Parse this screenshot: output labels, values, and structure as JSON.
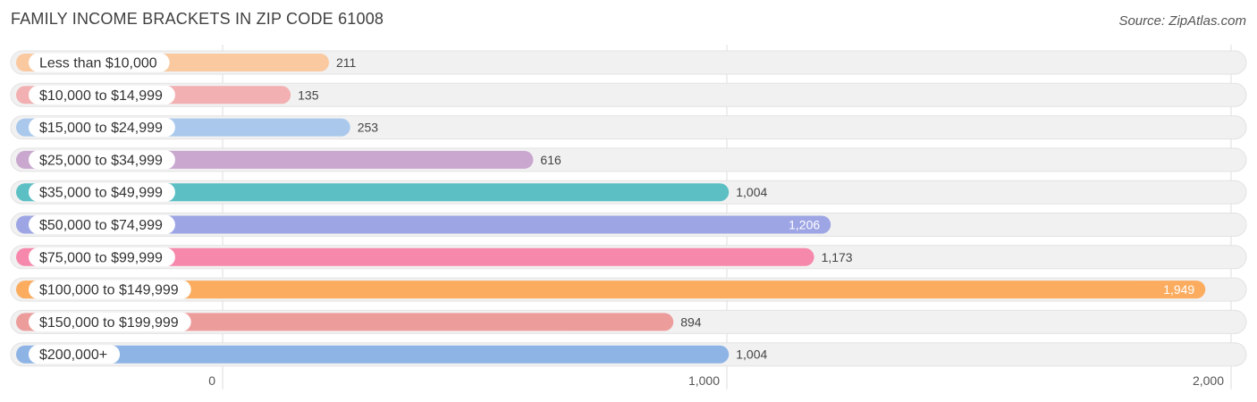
{
  "header": {
    "title": "FAMILY INCOME BRACKETS IN ZIP CODE 61008",
    "source": "Source: ZipAtlas.com"
  },
  "chart_data": {
    "type": "bar",
    "orientation": "horizontal",
    "title": "FAMILY INCOME BRACKETS IN ZIP CODE 61008",
    "xlabel": "",
    "ylabel": "",
    "xlim": [
      0,
      2000
    ],
    "ticks": [
      0,
      1000,
      2000
    ],
    "tick_labels": [
      "0",
      "1,000",
      "2,000"
    ],
    "grid": true,
    "categories": [
      "Less than $10,000",
      "$10,000 to $14,999",
      "$15,000 to $24,999",
      "$25,000 to $34,999",
      "$35,000 to $49,999",
      "$50,000 to $74,999",
      "$75,000 to $99,999",
      "$100,000 to $149,999",
      "$150,000 to $199,999",
      "$200,000+"
    ],
    "values": [
      211,
      135,
      253,
      616,
      1004,
      1206,
      1173,
      1949,
      894,
      1004
    ],
    "value_labels": [
      "211",
      "135",
      "253",
      "616",
      "1,004",
      "1,206",
      "1,173",
      "1,949",
      "894",
      "1,004"
    ],
    "colors": [
      "#fac9a0",
      "#f2b0b2",
      "#a9c8ec",
      "#c9a7cf",
      "#5bbfc4",
      "#9da5e4",
      "#f688ab",
      "#fbac5f",
      "#ec9d9b",
      "#8eb4e6"
    ],
    "label_inside": [
      false,
      false,
      false,
      false,
      false,
      true,
      false,
      true,
      false,
      false
    ]
  }
}
